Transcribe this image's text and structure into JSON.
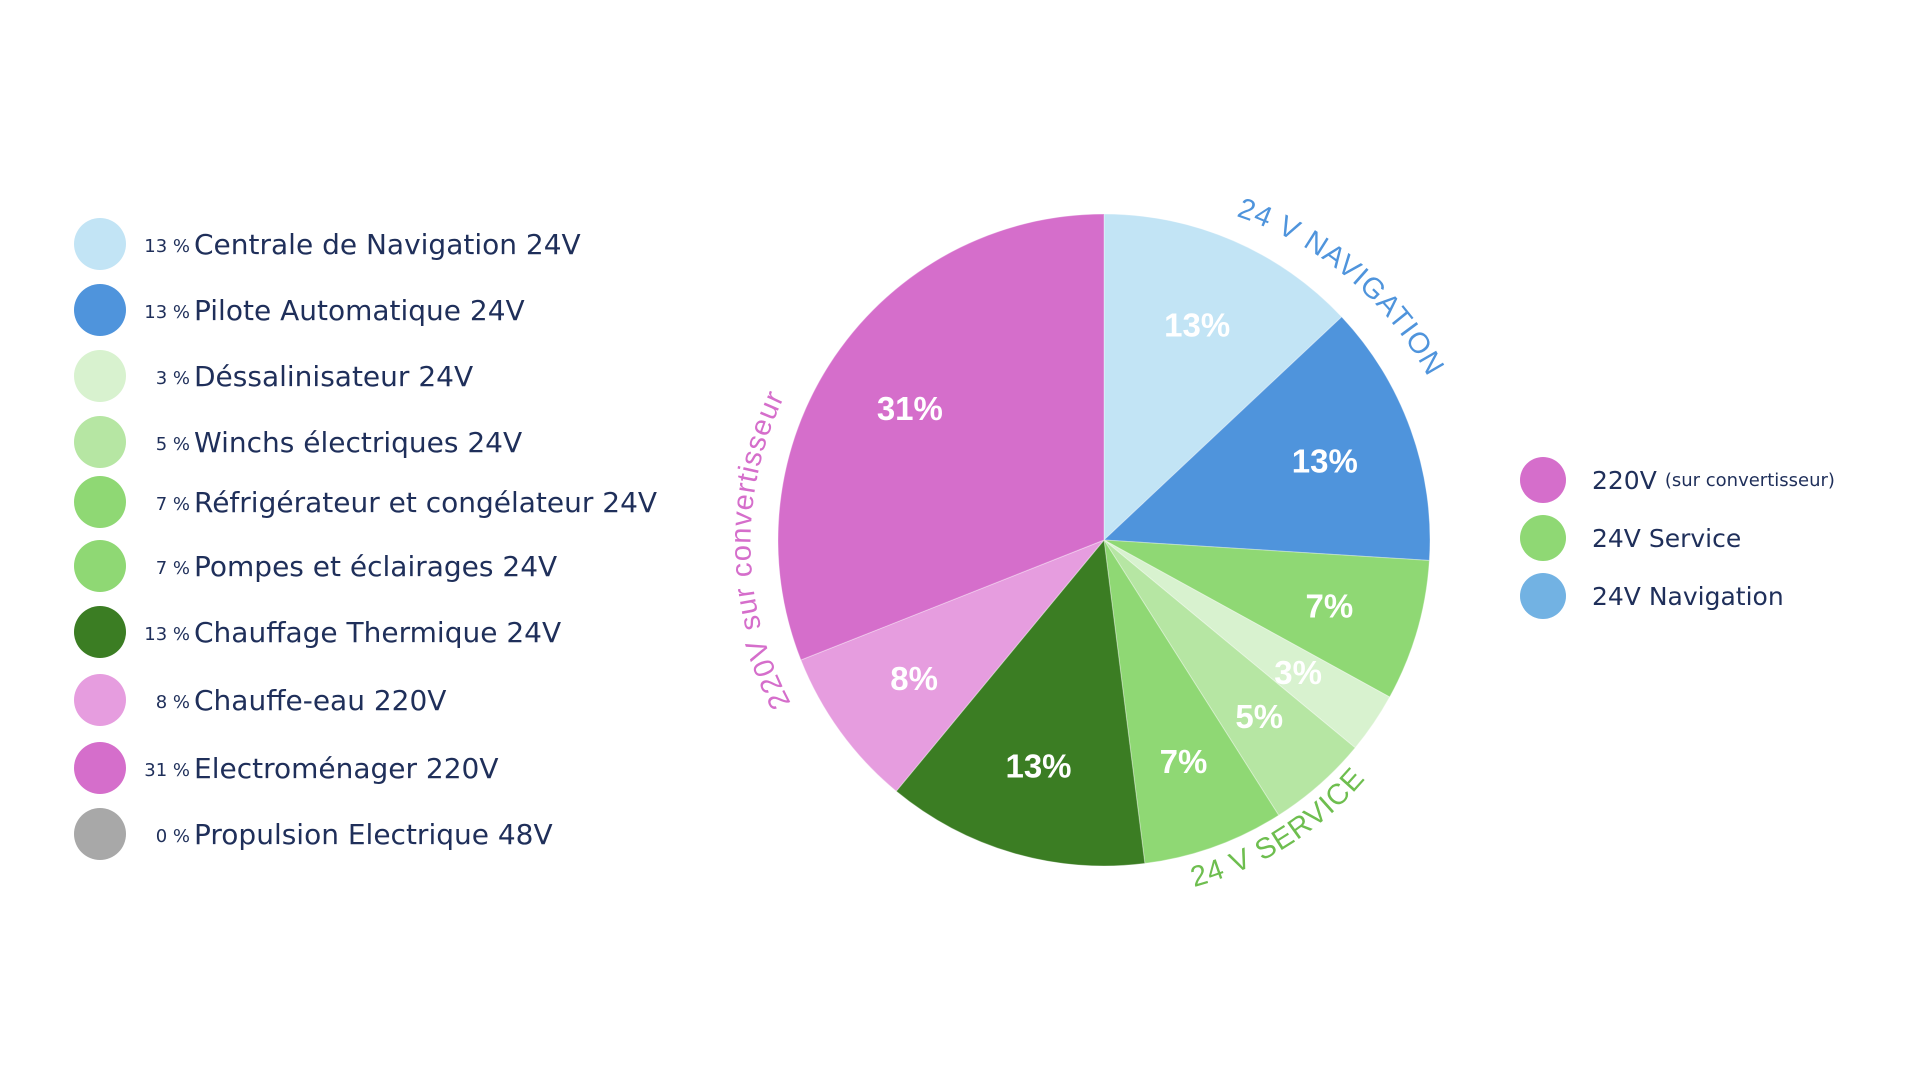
{
  "chart_data": {
    "type": "pie",
    "title": "",
    "slices": [
      {
        "label": "Centrale de Navigation 24V",
        "legend_pct": "13 %",
        "slice_label": "13%",
        "value": 13,
        "color": "#c2e4f5",
        "group": "nav"
      },
      {
        "label": "Pilote Automatique 24V",
        "legend_pct": "13 %",
        "slice_label": "13%",
        "value": 13,
        "color": "#4f94dc",
        "group": "nav"
      },
      {
        "label": "Réfrigérateur et congélateur 24V",
        "legend_pct": "7 %",
        "slice_label": "7%",
        "value": 7,
        "color": "#8fd874",
        "group": "service"
      },
      {
        "label": "Déssalinisateur 24V",
        "legend_pct": "3 %",
        "slice_label": "3%",
        "value": 3,
        "color": "#d8f2cf",
        "group": "service"
      },
      {
        "label": "Winchs électriques 24V",
        "legend_pct": "5 %",
        "slice_label": "5%",
        "value": 5,
        "color": "#b6e6a3",
        "group": "service"
      },
      {
        "label": "Pompes et éclairages 24V",
        "legend_pct": "7 %",
        "slice_label": "7%",
        "value": 7,
        "color": "#8fd874",
        "group": "service"
      },
      {
        "label": "Chauffage Thermique 24V",
        "legend_pct": "13 %",
        "slice_label": "13%",
        "value": 13,
        "color": "#3b7d23",
        "group": "service"
      },
      {
        "label": "Chauffe-eau 220V",
        "legend_pct": "8 %",
        "slice_label": "8%",
        "value": 8,
        "color": "#e69ddf",
        "group": "220"
      },
      {
        "label": "Electroménager 220V",
        "legend_pct": "31 %",
        "slice_label": "31%",
        "value": 31,
        "color": "#d56ecb",
        "group": "220"
      }
    ],
    "legend_order": [
      {
        "pct": "13 %",
        "label": "Centrale de Navigation 24V",
        "color": "#c2e4f5"
      },
      {
        "pct": "13 %",
        "label": "Pilote Automatique 24V",
        "color": "#4f94dc"
      },
      {
        "pct": "3 %",
        "label": "Déssalinisateur 24V",
        "color": "#d8f2cf"
      },
      {
        "pct": "5 %",
        "label": "Winchs électriques 24V",
        "color": "#b6e6a3"
      },
      {
        "pct": "7 %",
        "label": "Réfrigérateur et congélateur 24V",
        "color": "#8fd874"
      },
      {
        "pct": "7 %",
        "label": "Pompes et éclairages 24V",
        "color": "#8fd874"
      },
      {
        "pct": "13 %",
        "label": "Chauffage Thermique 24V",
        "color": "#3b7d23"
      },
      {
        "pct": "8 %",
        "label": "Chauffe-eau 220V",
        "color": "#e69ddf"
      },
      {
        "pct": "31 %",
        "label": "Electroménager 220V",
        "color": "#d56ecb"
      },
      {
        "pct": "0 %",
        "label": "Propulsion Electrique 48V",
        "color": "#a8a8a8"
      }
    ],
    "group_labels": {
      "nav": {
        "text": "24 V NAVIGATION",
        "color": "#4f94dc"
      },
      "service": {
        "text": "24 V SERVICE",
        "color": "#6ebe4f"
      },
      "220": {
        "text": "220V sur convertisseur",
        "color": "#d56ecb"
      }
    },
    "group_legend": [
      {
        "label": "220V",
        "sub": "(sur convertisseur)",
        "color": "#d56ecb"
      },
      {
        "label": "24V Service",
        "sub": "",
        "color": "#8fd874"
      },
      {
        "label": "24V Navigation",
        "sub": "",
        "color": "#72b2e3"
      }
    ]
  }
}
